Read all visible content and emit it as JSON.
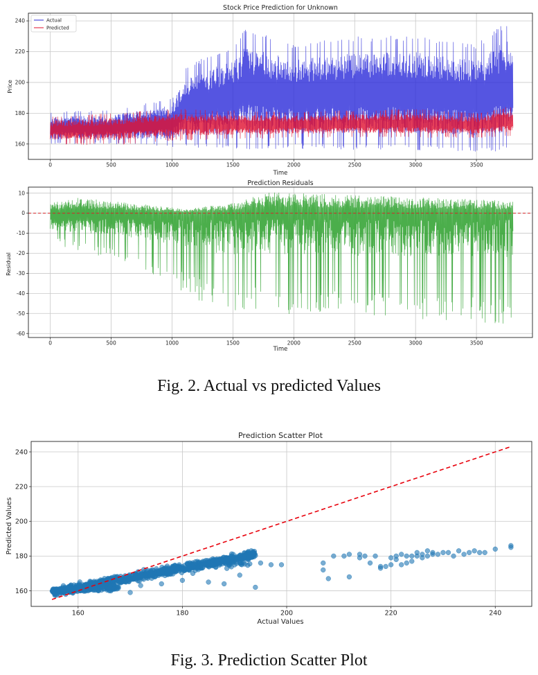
{
  "chart_data": [
    {
      "type": "line",
      "title": "Stock Price Prediction for Unknown",
      "xlabel": "Time",
      "ylabel": "Price",
      "xlim": [
        -180,
        3960
      ],
      "ylim": [
        150,
        245
      ],
      "xticks": [
        0,
        500,
        1000,
        1500,
        2000,
        2500,
        3000,
        3500
      ],
      "yticks": [
        160,
        180,
        200,
        220,
        240
      ],
      "grid": true,
      "legend": "top-left",
      "series": [
        {
          "name": "Actual",
          "color": "#2b2bd9",
          "envelope_x": [
            0,
            500,
            1000,
            1100,
            1500,
            1600,
            2000,
            2500,
            3000,
            3500,
            3800
          ],
          "upper": [
            181,
            182,
            190,
            210,
            225,
            235,
            225,
            230,
            231,
            225,
            243
          ],
          "lower": [
            160,
            160,
            158,
            158,
            156,
            156,
            157,
            156,
            156,
            155,
            155
          ]
        },
        {
          "name": "Predicted",
          "color": "#e0102f",
          "envelope_x": [
            0,
            500,
            1000,
            1500,
            2000,
            2500,
            3000,
            3500,
            3800
          ],
          "upper": [
            178,
            180,
            183,
            182,
            181,
            182,
            183,
            180,
            185
          ],
          "lower": [
            160,
            159,
            162,
            163,
            164,
            164,
            164,
            164,
            165
          ]
        }
      ]
    },
    {
      "type": "line",
      "title": "Prediction Residuals",
      "xlabel": "Time",
      "ylabel": "Residual",
      "xlim": [
        -180,
        3960
      ],
      "ylim": [
        -62,
        13
      ],
      "xticks": [
        0,
        500,
        1000,
        1500,
        2000,
        2500,
        3000,
        3500
      ],
      "yticks": [
        10,
        0,
        -10,
        -20,
        -30,
        -40,
        -50,
        -60
      ],
      "grid": true,
      "reference_line": {
        "y": 0,
        "color": "#d62728",
        "style": "dashed"
      },
      "series": [
        {
          "name": "",
          "color": "#2ca02c",
          "envelope_x": [
            0,
            250,
            500,
            1000,
            1100,
            1500,
            1750,
            2000,
            2500,
            3000,
            3500,
            3800
          ],
          "upper": [
            5,
            8,
            6,
            3,
            2,
            5,
            11,
            10,
            9,
            8,
            7,
            6
          ],
          "lower": [
            -15,
            -20,
            -22,
            -35,
            -40,
            -52,
            -48,
            -52,
            -52,
            -53,
            -55,
            -57
          ]
        }
      ]
    },
    {
      "type": "scatter",
      "title": "Prediction Scatter Plot",
      "xlabel": "Actual Values",
      "ylabel": "Predicted Values",
      "xlim": [
        151,
        247
      ],
      "ylim": [
        151,
        246
      ],
      "xticks": [
        160,
        180,
        200,
        220,
        240
      ],
      "yticks": [
        160,
        180,
        200,
        220,
        240
      ],
      "grid": true,
      "point_color": "#1f77b4",
      "reference_line": {
        "x": [
          155,
          243
        ],
        "y": [
          155,
          243
        ],
        "color": "#e8000b",
        "style": "dashed"
      },
      "clusters": [
        {
          "x_range": [
            155,
            194
          ],
          "y_start": 159,
          "y_end": 181,
          "spread": 2.0,
          "count": 950
        },
        {
          "x_range": [
            155,
            168
          ],
          "y_start": 160,
          "y_end": 162,
          "spread": 1.2,
          "count": 160
        },
        {
          "x_range": [
            185,
            193
          ],
          "y_start": 174,
          "y_end": 176,
          "spread": 1.5,
          "count": 30
        }
      ],
      "points": [
        [
          207,
          176
        ],
        [
          207,
          172
        ],
        [
          208,
          167
        ],
        [
          209,
          180
        ],
        [
          211,
          180
        ],
        [
          212,
          181
        ],
        [
          212,
          168
        ],
        [
          214,
          181
        ],
        [
          214,
          179
        ],
        [
          215,
          180
        ],
        [
          216,
          176
        ],
        [
          217,
          180
        ],
        [
          218,
          174
        ],
        [
          218,
          173
        ],
        [
          219,
          174
        ],
        [
          220,
          179
        ],
        [
          220,
          175
        ],
        [
          221,
          178
        ],
        [
          221,
          180
        ],
        [
          222,
          175
        ],
        [
          222,
          181
        ],
        [
          223,
          180
        ],
        [
          223,
          176
        ],
        [
          224,
          180
        ],
        [
          224,
          177
        ],
        [
          225,
          180
        ],
        [
          225,
          182
        ],
        [
          226,
          179
        ],
        [
          226,
          181
        ],
        [
          227,
          180
        ],
        [
          227,
          183
        ],
        [
          228,
          182
        ],
        [
          228,
          181
        ],
        [
          229,
          181
        ],
        [
          230,
          182
        ],
        [
          231,
          182
        ],
        [
          232,
          180
        ],
        [
          233,
          183
        ],
        [
          234,
          181
        ],
        [
          235,
          182
        ],
        [
          236,
          183
        ],
        [
          237,
          182
        ],
        [
          238,
          182
        ],
        [
          240,
          184
        ],
        [
          243,
          185
        ],
        [
          243,
          186
        ],
        [
          199,
          175
        ],
        [
          197,
          175
        ],
        [
          195,
          176
        ],
        [
          188,
          164
        ],
        [
          185,
          165
        ],
        [
          180,
          166
        ],
        [
          176,
          164
        ],
        [
          172,
          163
        ],
        [
          170,
          159
        ],
        [
          166,
          160
        ],
        [
          194,
          162
        ],
        [
          191,
          169
        ],
        [
          183,
          173
        ],
        [
          182,
          170
        ]
      ]
    }
  ],
  "captions": {
    "fig2": "Fig. 2.  Actual vs predicted Values",
    "fig3": "Fig. 3.  Prediction Scatter Plot"
  }
}
